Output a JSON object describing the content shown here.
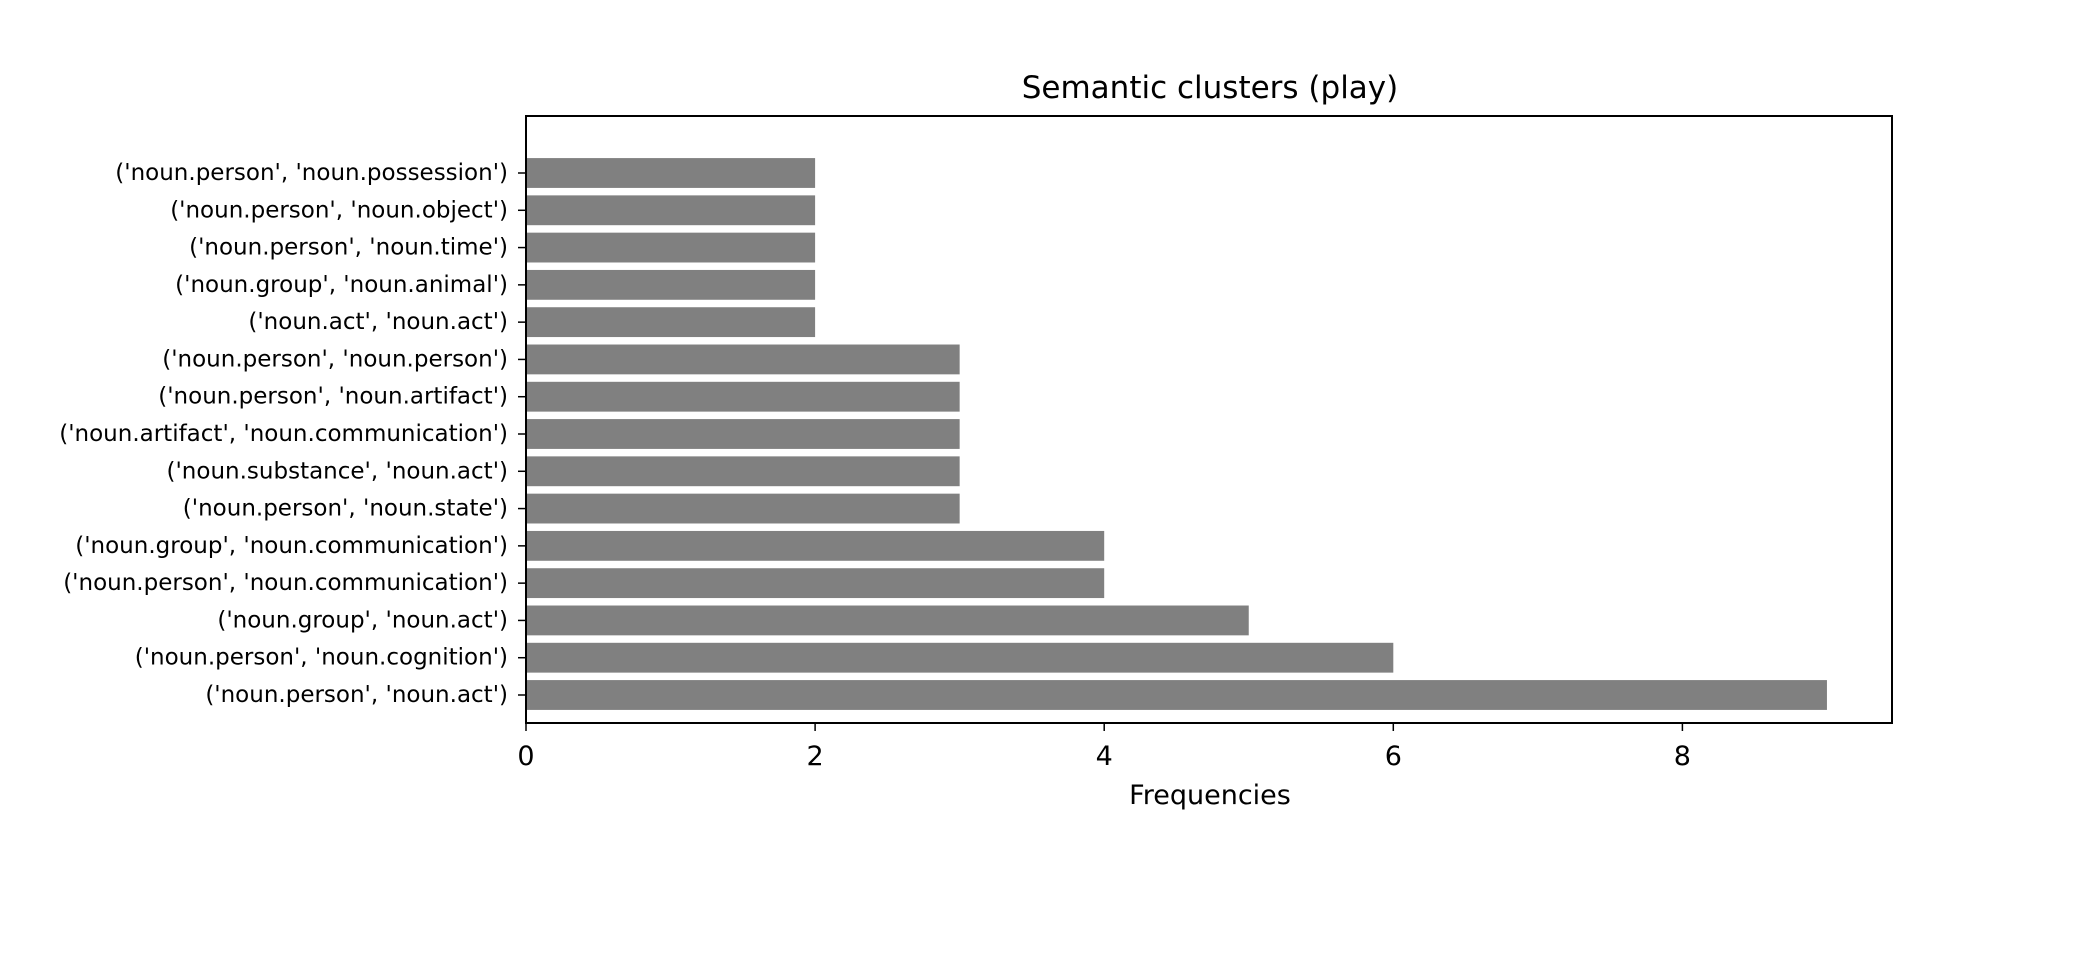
{
  "chart_data": {
    "type": "bar",
    "orientation": "horizontal",
    "title": "Semantic clusters (play)",
    "xlabel": "Frequencies",
    "ylabel": "",
    "categories": [
      "('noun.person', 'noun.act')",
      "('noun.person', 'noun.cognition')",
      "('noun.group', 'noun.act')",
      "('noun.person', 'noun.communication')",
      "('noun.group', 'noun.communication')",
      "('noun.person', 'noun.state')",
      "('noun.substance', 'noun.act')",
      "('noun.artifact', 'noun.communication')",
      "('noun.person', 'noun.artifact')",
      "('noun.person', 'noun.person')",
      "('noun.act', 'noun.act')",
      "('noun.group', 'noun.animal')",
      "('noun.person', 'noun.time')",
      "('noun.person', 'noun.object')",
      "('noun.person', 'noun.possession')"
    ],
    "values": [
      9,
      6,
      5,
      4,
      4,
      3,
      3,
      3,
      3,
      3,
      2,
      2,
      2,
      2,
      2
    ],
    "xlim": [
      0,
      9.45
    ],
    "xticks": [
      "0",
      "2",
      "4",
      "6",
      "8"
    ],
    "bar_color": "#808080",
    "grid": false,
    "legend": "none"
  }
}
